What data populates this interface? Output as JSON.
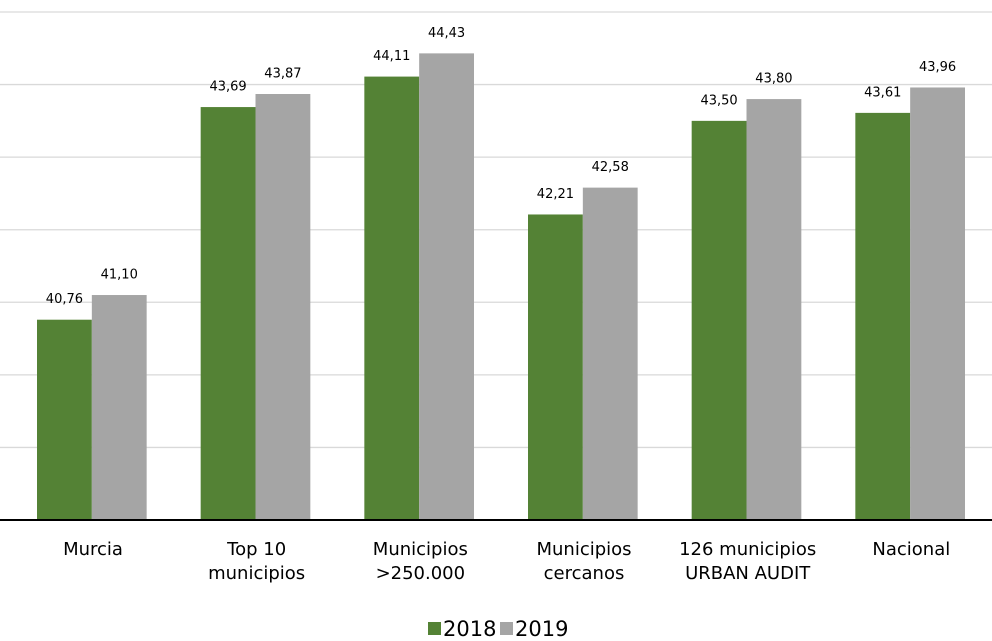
{
  "chart_data": {
    "type": "bar",
    "categories": [
      "Murcia",
      "Top 10\nmunicipios",
      "Municipios\n>250.000",
      "Municipios\ncercanos",
      "126 municipios\nURBAN AUDIT",
      "Nacional"
    ],
    "series": [
      {
        "name": "2018",
        "color": "#548235",
        "values": [
          40.76,
          43.69,
          44.11,
          42.21,
          43.5,
          43.61
        ],
        "value_labels": [
          "40,76",
          "43,69",
          "44,11",
          "42,21",
          "43,50",
          "43,61"
        ]
      },
      {
        "name": "2019",
        "color": "#a5a5a5",
        "values": [
          41.1,
          43.87,
          44.43,
          42.58,
          43.8,
          43.96
        ],
        "value_labels": [
          "41,10",
          "43,87",
          "44,43",
          "42,58",
          "43,80",
          "43,96"
        ]
      }
    ],
    "ylim": [
      38,
      45
    ],
    "yticks": [
      38,
      39,
      40,
      41,
      42,
      43,
      44,
      45
    ],
    "grid": true,
    "legend": "bottom"
  }
}
